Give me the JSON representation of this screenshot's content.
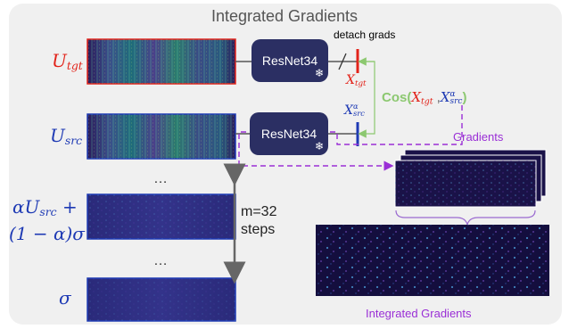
{
  "title": "Integrated Gradients",
  "labels": {
    "u_tgt": "U",
    "u_tgt_sub": "tgt",
    "u_src": "U",
    "u_src_sub": "src",
    "interp_line1": "αU",
    "interp_line1_sub": "src",
    "interp_line1_tail": " +",
    "interp_line2": "(1 − α)σ",
    "sigma": "σ",
    "x_tgt": "X",
    "x_tgt_sub": "tgt",
    "x_src": "X",
    "x_src_sub": "src",
    "x_src_sup": "α",
    "cos_word": "Cos(",
    "cos_x1": "X",
    "cos_x1_sub": "tgt",
    "cos_sep": " ,",
    "cos_x2": "X",
    "cos_x2_sup": "α",
    "cos_x2_sub": "src",
    "cos_close": ")",
    "detach": "detach grads",
    "m_steps_1": "m=32",
    "m_steps_2": "steps",
    "gradients": "Gradients",
    "integrated": "Integrated Gradients",
    "ellipsis": "…"
  },
  "blocks": {
    "resnet_top": "ResNet34",
    "resnet_mid": "ResNet34",
    "snowflake": "❄"
  },
  "colors": {
    "tgt_red": "#e2231a",
    "src_blue": "#1e3ab4",
    "cos_green": "#8cc870",
    "purple": "#9a2fd6",
    "block_navy": "#2b2f63"
  }
}
